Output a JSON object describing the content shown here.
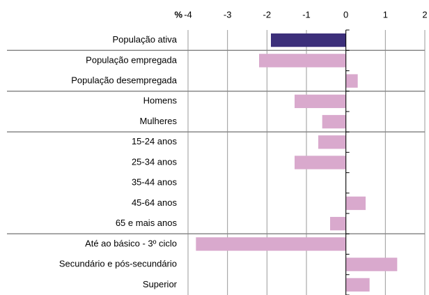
{
  "chart_data": {
    "type": "hbar",
    "x_label": "%",
    "categories": [
      "População ativa",
      "População empregada",
      "População desempregada",
      "Homens",
      "Mulheres",
      "15-24 anos",
      "25-34 anos",
      "35-44 anos",
      "45-64 anos",
      "65 e mais anos",
      "Até ao básico - 3º ciclo",
      "Secundário e pós-secundário",
      "Superior"
    ],
    "values": [
      -1.9,
      -2.2,
      0.3,
      -1.3,
      -0.6,
      -0.7,
      -1.3,
      0,
      0.5,
      -0.4,
      -3.8,
      1.3,
      0.6
    ],
    "colors": [
      "#3c2f7a",
      "#d9a9cd",
      "#d9a9cd",
      "#d9a9cd",
      "#d9a9cd",
      "#d9a9cd",
      "#d9a9cd",
      "#d9a9cd",
      "#d9a9cd",
      "#d9a9cd",
      "#d9a9cd",
      "#d9a9cd",
      "#d9a9cd"
    ],
    "xlim": [
      -4,
      2
    ],
    "xticks": [
      -4,
      -3,
      -2,
      -1,
      0,
      1,
      2
    ],
    "grid": true
  }
}
